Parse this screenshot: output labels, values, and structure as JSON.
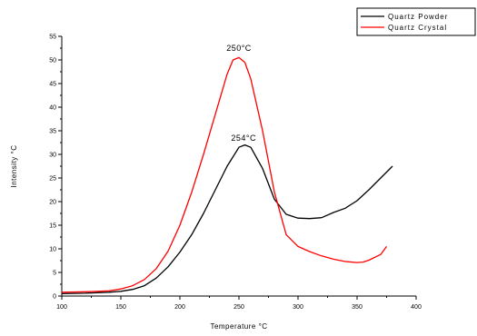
{
  "chart_data": {
    "type": "line",
    "xlabel": "Temperature °C",
    "ylabel": "Intensity °C",
    "xlim": [
      100,
      400
    ],
    "ylim": [
      0,
      55
    ],
    "xticks": [
      "100",
      "150",
      "200",
      "250",
      "300",
      "350",
      "400"
    ],
    "yticks": [
      "0",
      "5",
      "10",
      "15",
      "20",
      "25",
      "30",
      "35",
      "40",
      "45",
      "50",
      "55"
    ],
    "grid": false,
    "legend_position": "top-right",
    "series": [
      {
        "name": "Quartz Powder",
        "color": "#000000",
        "x": [
          100,
          120,
          140,
          150,
          160,
          170,
          180,
          190,
          200,
          210,
          220,
          230,
          240,
          250,
          255,
          260,
          270,
          280,
          290,
          300,
          310,
          320,
          330,
          340,
          350,
          360,
          370,
          380
        ],
        "y": [
          0.5,
          0.6,
          0.8,
          1.0,
          1.4,
          2.2,
          3.8,
          6.2,
          9.3,
          13.0,
          17.5,
          22.5,
          27.5,
          31.5,
          32.0,
          31.5,
          27.0,
          20.5,
          17.3,
          16.5,
          16.4,
          16.6,
          17.7,
          18.6,
          20.2,
          22.5,
          25.0,
          27.5
        ]
      },
      {
        "name": "Quartz Crystal",
        "color": "#ff0000",
        "x": [
          100,
          120,
          140,
          150,
          160,
          170,
          180,
          190,
          200,
          210,
          220,
          230,
          240,
          245,
          250,
          255,
          260,
          270,
          280,
          290,
          300,
          310,
          320,
          330,
          340,
          350,
          355,
          360,
          370,
          375
        ],
        "y": [
          0.8,
          0.9,
          1.1,
          1.5,
          2.2,
          3.5,
          5.8,
          9.5,
          15.0,
          22.0,
          30.0,
          38.5,
          47.0,
          50.0,
          50.5,
          49.5,
          46.0,
          35.0,
          22.0,
          13.0,
          10.5,
          9.4,
          8.5,
          7.8,
          7.3,
          7.1,
          7.2,
          7.6,
          8.8,
          10.5
        ]
      }
    ],
    "annotations": [
      {
        "text": "250°C",
        "x": 250,
        "y": 51.5
      },
      {
        "text": "254°C",
        "x": 254,
        "y": 32.5
      }
    ]
  }
}
